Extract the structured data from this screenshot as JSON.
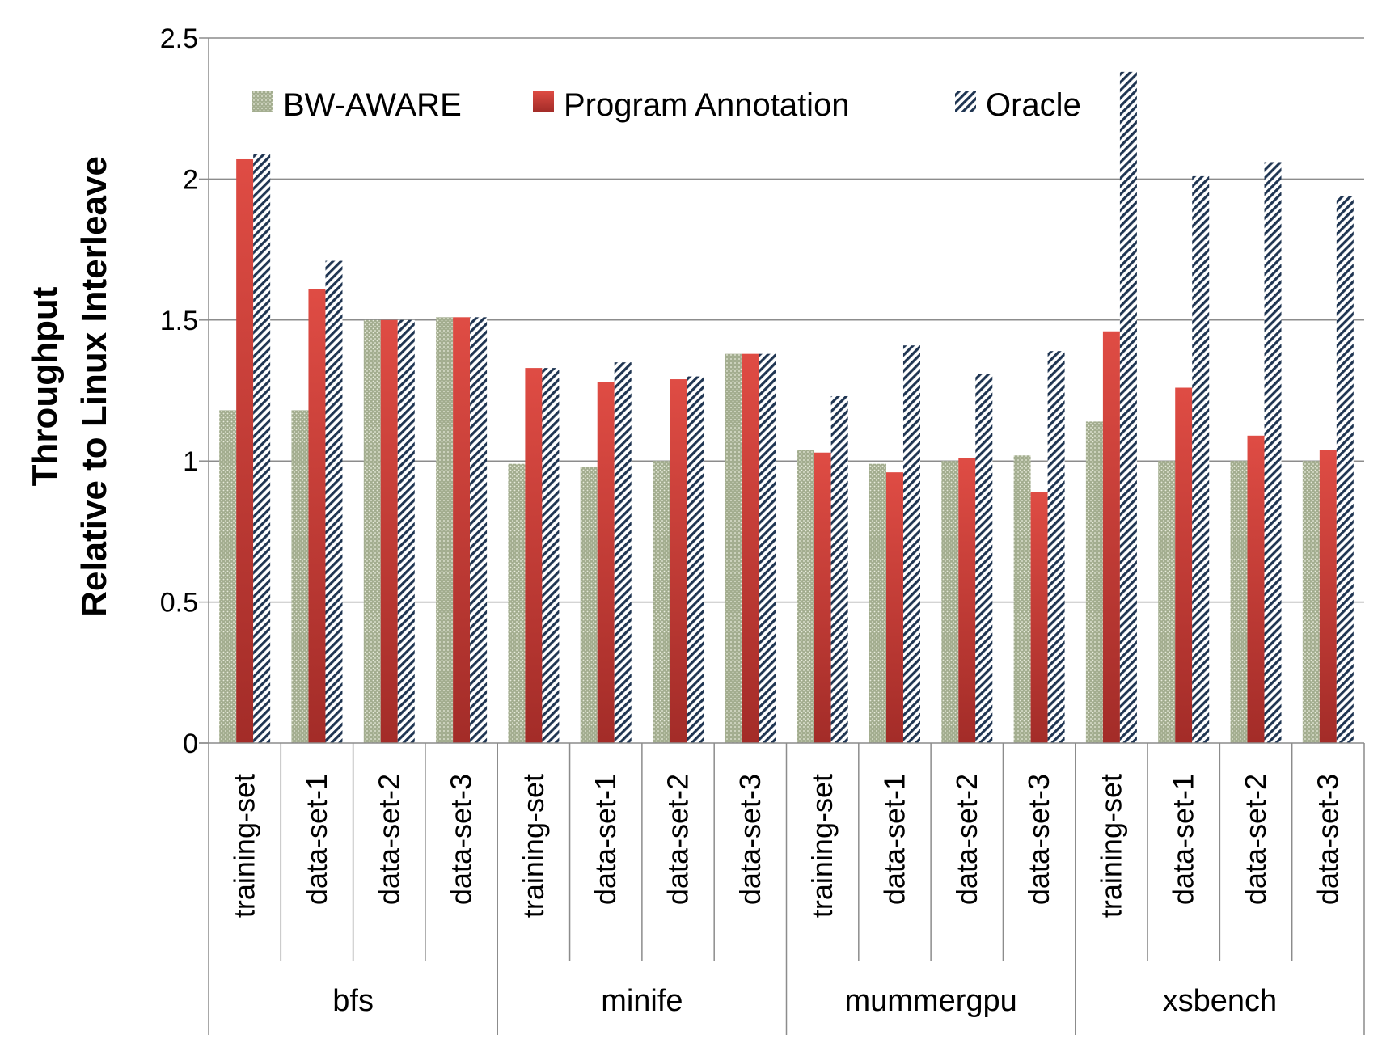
{
  "chart_data": {
    "type": "bar",
    "ylabel_lines": [
      "Throughput",
      "Relative to Linux Interleave"
    ],
    "ylim": [
      0,
      2.5
    ],
    "yticks": [
      0,
      0.5,
      1,
      1.5,
      2,
      2.5
    ],
    "ytick_labels": [
      "0",
      "0.5",
      "1",
      "1.5",
      "2",
      "2.5"
    ],
    "grid": true,
    "legend_position": "top",
    "groups": [
      {
        "name": "bfs",
        "categories": [
          "training-set",
          "data-set-1",
          "data-set-2",
          "data-set-3"
        ]
      },
      {
        "name": "minife",
        "categories": [
          "training-set",
          "data-set-1",
          "data-set-2",
          "data-set-3"
        ]
      },
      {
        "name": "mummergpu",
        "categories": [
          "training-set",
          "data-set-1",
          "data-set-2",
          "data-set-3"
        ]
      },
      {
        "name": "xsbench",
        "categories": [
          "training-set",
          "data-set-1",
          "data-set-2",
          "data-set-3"
        ]
      }
    ],
    "series": [
      {
        "name": "BW-AWARE",
        "color": "#a3ad8f",
        "values": [
          1.18,
          1.18,
          1.5,
          1.51,
          0.99,
          0.98,
          1.0,
          1.38,
          1.04,
          0.99,
          1.0,
          1.02,
          1.14,
          1.0,
          1.0,
          1.0
        ]
      },
      {
        "name": "Program Annotation",
        "color": "#cc3b35",
        "values": [
          2.07,
          1.61,
          1.5,
          1.51,
          1.33,
          1.28,
          1.29,
          1.38,
          1.03,
          0.96,
          1.01,
          0.89,
          1.46,
          1.26,
          1.09,
          1.04
        ]
      },
      {
        "name": "Oracle",
        "color": "#1f3552",
        "values": [
          2.09,
          1.71,
          1.5,
          1.51,
          1.33,
          1.35,
          1.3,
          1.38,
          1.23,
          1.41,
          1.31,
          1.39,
          2.38,
          2.01,
          2.06,
          1.94
        ]
      }
    ]
  }
}
